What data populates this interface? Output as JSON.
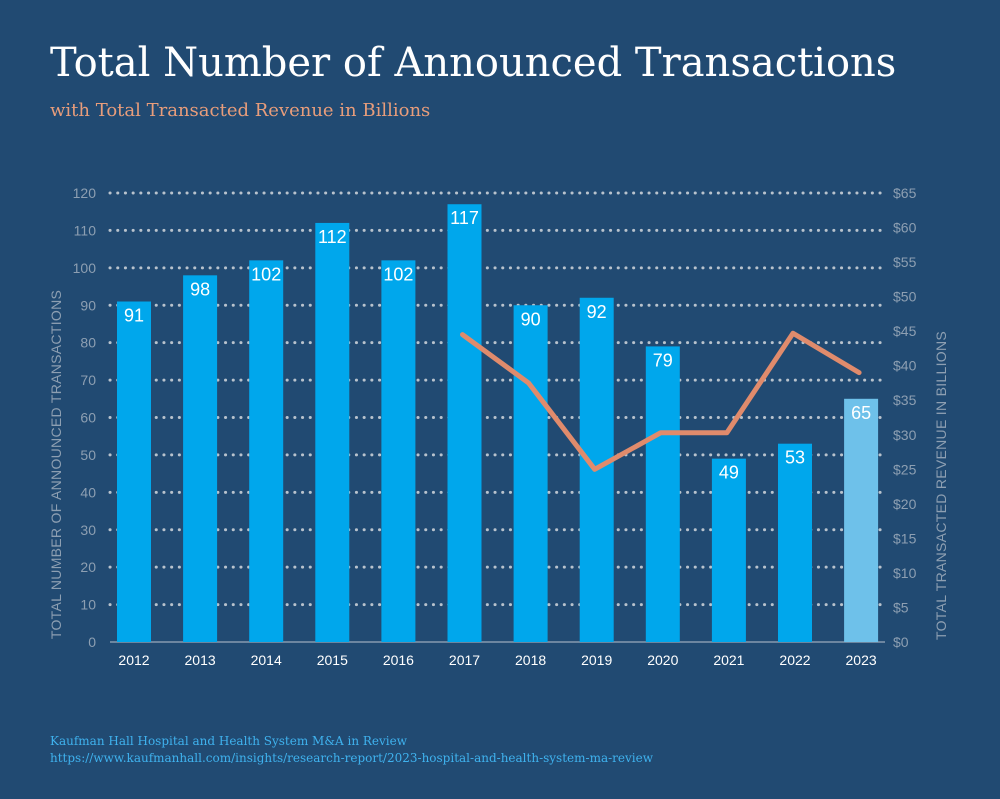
{
  "title": "Total Number of Announced Transactions",
  "subtitle": "with Total Transacted Revenue in Billions",
  "source": {
    "line1": "Kaufman Hall Hospital and Health System M&A in Review",
    "line2": "https://www.kaufmanhall.com/insights/research-report/2023-hospital-and-health-system-ma-review"
  },
  "colors": {
    "background": "#214a72",
    "bar": "#00a7ec",
    "bar_highlight": "#6ec1ea",
    "line": "#e08b6c",
    "grid": "#b9c3cd"
  },
  "chart_data": {
    "type": "bar",
    "categories": [
      "2012",
      "2013",
      "2014",
      "2015",
      "2016",
      "2017",
      "2018",
      "2019",
      "2020",
      "2021",
      "2022",
      "2023"
    ],
    "series": [
      {
        "name": "Total Number of Announced Transactions",
        "type": "bar",
        "axis": "left",
        "values": [
          91,
          98,
          102,
          112,
          102,
          117,
          90,
          92,
          79,
          49,
          53,
          65
        ],
        "highlight_index": 11
      },
      {
        "name": "Total Transacted Revenue in Billions",
        "type": "line",
        "axis": "right",
        "values": [
          null,
          null,
          null,
          null,
          null,
          44.5,
          37.5,
          25,
          30.3,
          30.3,
          44.7,
          39
        ]
      }
    ],
    "ylabel": "TOTAL NUMBER OF ANNOUNCED TRANSACTIONS",
    "y2label": "TOTAL TRANSACTED REVENUE IN BILLIONS",
    "ylim": [
      0,
      120
    ],
    "y2lim": [
      0,
      65
    ],
    "yticks": [
      "0",
      "10",
      "20",
      "30",
      "40",
      "50",
      "60",
      "70",
      "80",
      "90",
      "100",
      "110",
      "120"
    ],
    "y2ticks": [
      "$0",
      "$5",
      "$10",
      "$15",
      "$20",
      "$25",
      "$30",
      "$35",
      "$40",
      "$45",
      "$50",
      "$55",
      "$60",
      "$65"
    ],
    "grid": true
  }
}
